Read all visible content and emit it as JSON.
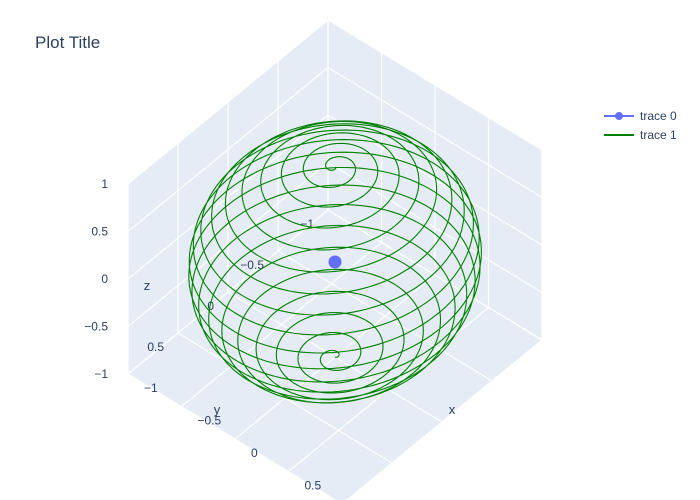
{
  "title": "Plot Title",
  "chart_data": {
    "type": "scatter3d",
    "title": "Plot Title",
    "axes": {
      "x": {
        "label": "x",
        "range": [
          -1,
          1
        ],
        "ticks": [
          "−1",
          "−0.5",
          "0",
          "0.5"
        ]
      },
      "y": {
        "label": "y",
        "range": [
          -1,
          1
        ],
        "ticks": [
          "−1",
          "−0.5",
          "0",
          "0.5"
        ]
      },
      "z": {
        "label": "z",
        "range": [
          -1,
          1
        ],
        "ticks": [
          "−1",
          "−0.5",
          "0",
          "0.5",
          "1"
        ]
      }
    },
    "series": [
      {
        "name": "trace 0",
        "mode": "lines+markers",
        "color": "#636efa",
        "points": [
          {
            "x": 0,
            "y": 0,
            "z": 0
          }
        ]
      },
      {
        "name": "trace 1",
        "mode": "lines",
        "color": "#008000",
        "shape": "spherical spiral",
        "radius": 1,
        "turns": 20
      }
    ],
    "legend": {
      "position": "top-right",
      "items": [
        "trace 0",
        "trace 1"
      ]
    },
    "colors": {
      "scene_bg": "#e5ecf6",
      "grid": "#ffffff",
      "text": "#2a3f5f"
    }
  }
}
